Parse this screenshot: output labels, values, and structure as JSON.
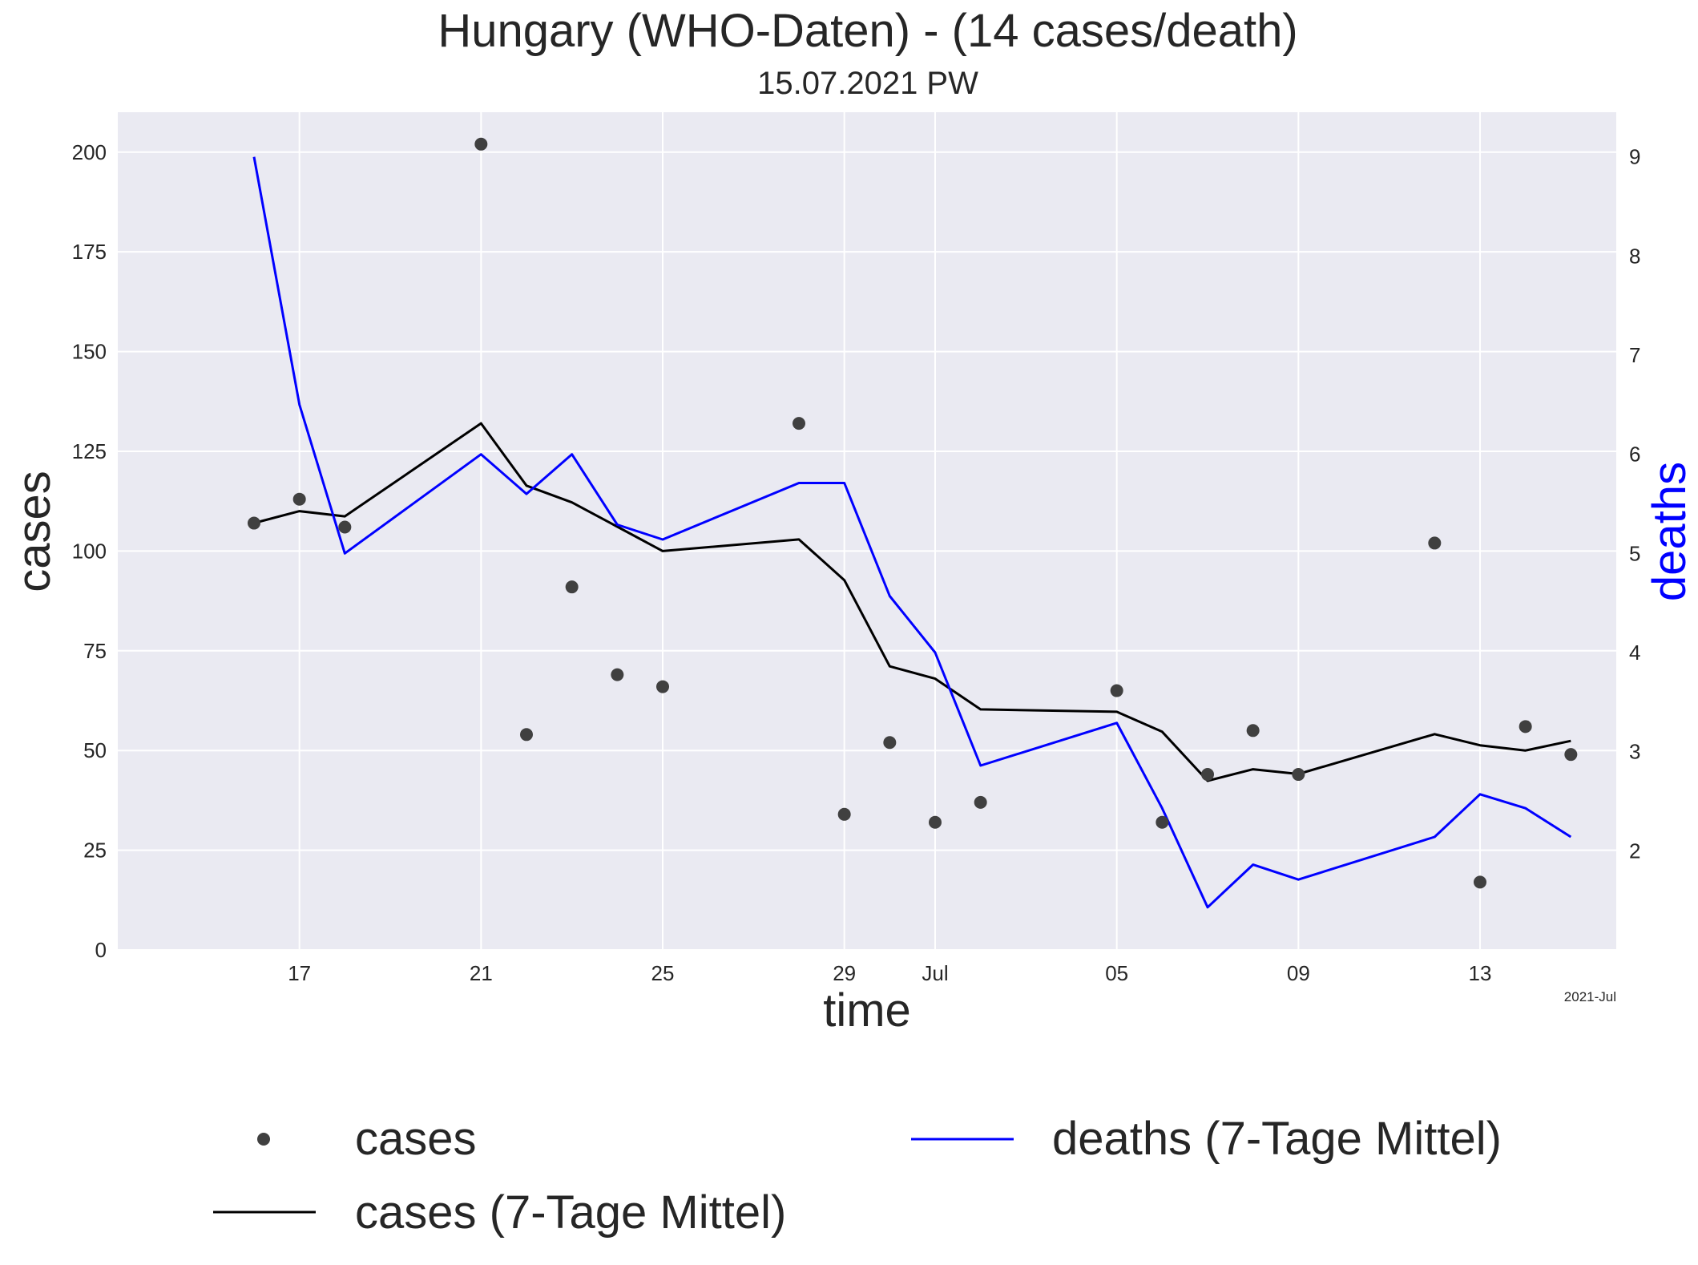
{
  "chart_data": {
    "type": "line",
    "title": "Hungary (WHO-Daten) - (14 cases/death)",
    "subtitle": "15.07.2021 PW",
    "xlabel": "time",
    "ylabel_left": "cases",
    "ylabel_right": "deaths",
    "x_offset_label": "2021-Jul",
    "x_tick_labels": [
      {
        "date": "2021-06-17",
        "label": "17"
      },
      {
        "date": "2021-06-21",
        "label": "21"
      },
      {
        "date": "2021-06-25",
        "label": "25"
      },
      {
        "date": "2021-06-29",
        "label": "29"
      },
      {
        "date": "2021-07-01",
        "label": "Jul"
      },
      {
        "date": "2021-07-05",
        "label": "05"
      },
      {
        "date": "2021-07-09",
        "label": "09"
      },
      {
        "date": "2021-07-13",
        "label": "13"
      }
    ],
    "x_range": [
      "2021-06-13",
      "2021-07-16"
    ],
    "ylim_left": [
      0,
      210
    ],
    "yticks_left": [
      0,
      25,
      50,
      75,
      100,
      125,
      150,
      175,
      200
    ],
    "ylim_right": [
      1.0,
      9.45
    ],
    "yticks_right": [
      2,
      3,
      4,
      5,
      6,
      7,
      8,
      9
    ],
    "grid": true,
    "legend_position": "bottom",
    "colors": {
      "background": "#EAEAF2",
      "grid": "#FFFFFF",
      "cases_points": "#404040",
      "cases_avg": "#000000",
      "deaths_avg": "#0000FF",
      "right_label": "#0000FF",
      "text": "#262626"
    },
    "series": [
      {
        "name": "cases",
        "kind": "scatter",
        "axis": "left",
        "points": [
          {
            "x": "2021-06-16",
            "y": 107
          },
          {
            "x": "2021-06-17",
            "y": 113
          },
          {
            "x": "2021-06-18",
            "y": 106
          },
          {
            "x": "2021-06-21",
            "y": 202
          },
          {
            "x": "2021-06-22",
            "y": 54
          },
          {
            "x": "2021-06-23",
            "y": 91
          },
          {
            "x": "2021-06-24",
            "y": 69
          },
          {
            "x": "2021-06-25",
            "y": 66
          },
          {
            "x": "2021-06-28",
            "y": 132
          },
          {
            "x": "2021-06-29",
            "y": 34
          },
          {
            "x": "2021-06-30",
            "y": 52
          },
          {
            "x": "2021-07-01",
            "y": 32
          },
          {
            "x": "2021-07-02",
            "y": 37
          },
          {
            "x": "2021-07-05",
            "y": 65
          },
          {
            "x": "2021-07-06",
            "y": 32
          },
          {
            "x": "2021-07-07",
            "y": 44
          },
          {
            "x": "2021-07-08",
            "y": 55
          },
          {
            "x": "2021-07-09",
            "y": 44
          },
          {
            "x": "2021-07-12",
            "y": 102
          },
          {
            "x": "2021-07-13",
            "y": 17
          },
          {
            "x": "2021-07-14",
            "y": 56
          },
          {
            "x": "2021-07-15",
            "y": 49
          }
        ]
      },
      {
        "name": "cases (7-Tage Mittel)",
        "kind": "line",
        "axis": "left",
        "points": [
          {
            "x": "2021-06-16",
            "y": 107
          },
          {
            "x": "2021-06-17",
            "y": 110
          },
          {
            "x": "2021-06-18",
            "y": 108.7
          },
          {
            "x": "2021-06-21",
            "y": 132
          },
          {
            "x": "2021-06-22",
            "y": 116.4
          },
          {
            "x": "2021-06-23",
            "y": 112.2
          },
          {
            "x": "2021-06-24",
            "y": 106.1
          },
          {
            "x": "2021-06-25",
            "y": 100
          },
          {
            "x": "2021-06-28",
            "y": 102.9
          },
          {
            "x": "2021-06-29",
            "y": 92.7
          },
          {
            "x": "2021-06-30",
            "y": 71.1
          },
          {
            "x": "2021-07-01",
            "y": 68
          },
          {
            "x": "2021-07-02",
            "y": 60.3
          },
          {
            "x": "2021-07-05",
            "y": 59.7
          },
          {
            "x": "2021-07-06",
            "y": 54.7
          },
          {
            "x": "2021-07-07",
            "y": 42.4
          },
          {
            "x": "2021-07-08",
            "y": 45.3
          },
          {
            "x": "2021-07-09",
            "y": 44.1
          },
          {
            "x": "2021-07-12",
            "y": 54.1
          },
          {
            "x": "2021-07-13",
            "y": 51.3
          },
          {
            "x": "2021-07-14",
            "y": 50
          },
          {
            "x": "2021-07-15",
            "y": 52.4
          }
        ]
      },
      {
        "name": "deaths (7-Tage Mittel)",
        "kind": "line",
        "axis": "right",
        "points": [
          {
            "x": "2021-06-16",
            "y": 9.0
          },
          {
            "x": "2021-06-17",
            "y": 6.5
          },
          {
            "x": "2021-06-18",
            "y": 5.0
          },
          {
            "x": "2021-06-21",
            "y": 6.0
          },
          {
            "x": "2021-06-22",
            "y": 5.6
          },
          {
            "x": "2021-06-23",
            "y": 6.0
          },
          {
            "x": "2021-06-24",
            "y": 5.29
          },
          {
            "x": "2021-06-25",
            "y": 5.14
          },
          {
            "x": "2021-06-28",
            "y": 5.71
          },
          {
            "x": "2021-06-29",
            "y": 5.71
          },
          {
            "x": "2021-06-30",
            "y": 4.57
          },
          {
            "x": "2021-07-01",
            "y": 4.0
          },
          {
            "x": "2021-07-02",
            "y": 2.86
          },
          {
            "x": "2021-07-05",
            "y": 3.29
          },
          {
            "x": "2021-07-06",
            "y": 2.43
          },
          {
            "x": "2021-07-07",
            "y": 1.43
          },
          {
            "x": "2021-07-08",
            "y": 1.86
          },
          {
            "x": "2021-07-09",
            "y": 1.71
          },
          {
            "x": "2021-07-12",
            "y": 2.14
          },
          {
            "x": "2021-07-13",
            "y": 2.57
          },
          {
            "x": "2021-07-14",
            "y": 2.43
          },
          {
            "x": "2021-07-15",
            "y": 2.14
          }
        ]
      }
    ]
  }
}
